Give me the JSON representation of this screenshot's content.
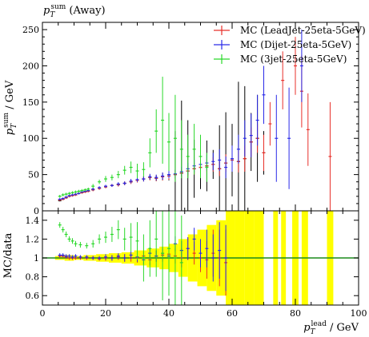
{
  "chart_data": {
    "type": "scatter",
    "title": "p_T^sum (Away)",
    "title_main": "p",
    "title_sub": "T",
    "title_sup": "sum",
    "title_rest": " (Away)",
    "xlabel_main": "p",
    "xlabel_sub": "T",
    "xlabel_sup": "lead",
    "xlabel_rest": " / GeV",
    "ylabel_main": "p",
    "ylabel_sub": "T",
    "ylabel_sup": "sum",
    "ylabel_rest": " / GeV",
    "ratio_ylabel": "MC/data",
    "xlim": [
      0,
      100
    ],
    "ylim": [
      0,
      260
    ],
    "ratio_ylim": [
      0.5,
      1.5
    ],
    "x_ticks": [
      0,
      20,
      40,
      60,
      80,
      100
    ],
    "y_ticks": [
      0,
      50,
      100,
      150,
      200,
      250
    ],
    "ratio_ticks": [
      0.6,
      0.8,
      1,
      1.2,
      1.4
    ],
    "legend_position": "top-right",
    "series": [
      {
        "name": "MC (LeadJet-25eta-5GeV)",
        "color": "#e8302a",
        "points": [
          [
            5.5,
            15,
            1.5
          ],
          [
            6.5,
            16,
            1.5
          ],
          [
            7.5,
            18,
            1.5
          ],
          [
            8.5,
            20,
            1.5
          ],
          [
            9.5,
            21,
            1.5
          ],
          [
            10.5,
            22,
            1.5
          ],
          [
            11.5,
            24,
            1.5
          ],
          [
            12.5,
            25,
            1.5
          ],
          [
            13.5,
            26,
            1.5
          ],
          [
            14.5,
            27,
            1.5
          ],
          [
            16,
            29,
            2
          ],
          [
            18,
            31,
            2
          ],
          [
            20,
            33,
            2
          ],
          [
            22,
            35,
            2
          ],
          [
            24,
            36,
            2.5
          ],
          [
            26,
            38,
            2.5
          ],
          [
            28,
            40,
            3
          ],
          [
            30,
            42,
            3
          ],
          [
            32,
            44,
            3.5
          ],
          [
            34,
            46,
            4
          ],
          [
            36,
            45,
            4
          ],
          [
            38,
            47,
            5
          ],
          [
            40,
            48,
            5
          ],
          [
            42,
            50,
            6
          ],
          [
            44,
            52,
            6
          ],
          [
            46,
            55,
            7
          ],
          [
            48,
            58,
            8
          ],
          [
            50,
            60,
            8
          ],
          [
            52,
            62,
            9
          ],
          [
            54,
            64,
            10
          ],
          [
            56,
            58,
            10
          ],
          [
            58,
            66,
            12
          ],
          [
            60,
            70,
            15
          ],
          [
            62,
            68,
            15
          ],
          [
            64,
            72,
            18
          ],
          [
            66,
            95,
            20
          ],
          [
            68,
            100,
            20
          ],
          [
            70,
            80,
            25
          ],
          [
            72,
            120,
            30
          ],
          [
            76,
            180,
            40
          ],
          [
            80,
            200,
            40
          ],
          [
            82,
            165,
            50
          ],
          [
            84,
            112,
            50
          ],
          [
            91,
            75,
            75
          ]
        ],
        "ratio": [
          [
            5.5,
            1.02,
            0.02
          ],
          [
            6.5,
            1.02,
            0.02
          ],
          [
            7.5,
            1.01,
            0.02
          ],
          [
            8.5,
            1.0,
            0.02
          ],
          [
            9.5,
            1.0,
            0.02
          ],
          [
            10.5,
            1.0,
            0.02
          ],
          [
            12,
            1.0,
            0.02
          ],
          [
            14,
            1.0,
            0.02
          ],
          [
            16,
            1.0,
            0.02
          ],
          [
            18,
            0.99,
            0.02
          ],
          [
            20,
            1.0,
            0.03
          ],
          [
            22,
            1.0,
            0.03
          ],
          [
            24,
            1.01,
            0.03
          ],
          [
            26,
            1.0,
            0.04
          ],
          [
            28,
            1.0,
            0.04
          ],
          [
            30,
            1.0,
            0.05
          ],
          [
            32,
            1.02,
            0.05
          ],
          [
            34,
            0.98,
            0.06
          ],
          [
            36,
            1.02,
            0.06
          ],
          [
            38,
            1.03,
            0.07
          ],
          [
            40,
            1.04,
            0.08
          ],
          [
            42,
            1.02,
            0.08
          ],
          [
            44,
            1.0,
            0.1
          ],
          [
            46,
            1.1,
            0.12
          ],
          [
            48,
            1.05,
            0.12
          ],
          [
            50,
            1.0,
            0.15
          ],
          [
            52,
            0.98,
            0.2
          ],
          [
            54,
            1.05,
            0.25
          ],
          [
            56,
            1.0,
            0.3
          ],
          [
            58,
            0.95,
            0.35
          ]
        ]
      },
      {
        "name": "MC (Dijet-25eta-5GeV)",
        "color": "#2a2ae8",
        "points": [
          [
            5.5,
            16,
            1.5
          ],
          [
            6.5,
            17,
            1.5
          ],
          [
            7.5,
            19,
            1.5
          ],
          [
            8.5,
            21,
            1.5
          ],
          [
            9.5,
            22,
            1.5
          ],
          [
            10.5,
            23,
            1.5
          ],
          [
            11.5,
            24,
            1.5
          ],
          [
            12.5,
            26,
            1.5
          ],
          [
            13.5,
            27,
            1.5
          ],
          [
            14.5,
            28,
            1.5
          ],
          [
            16,
            30,
            2
          ],
          [
            18,
            32,
            2
          ],
          [
            20,
            34,
            2
          ],
          [
            22,
            35,
            2
          ],
          [
            24,
            37,
            2.5
          ],
          [
            26,
            38,
            2.5
          ],
          [
            28,
            41,
            3
          ],
          [
            30,
            43,
            3
          ],
          [
            32,
            44,
            3.5
          ],
          [
            34,
            47,
            4
          ],
          [
            36,
            46,
            4
          ],
          [
            38,
            48,
            5
          ],
          [
            40,
            50,
            5
          ],
          [
            42,
            51,
            6
          ],
          [
            44,
            54,
            7
          ],
          [
            46,
            58,
            8
          ],
          [
            48,
            62,
            9
          ],
          [
            50,
            64,
            10
          ],
          [
            52,
            66,
            11
          ],
          [
            54,
            68,
            12
          ],
          [
            56,
            70,
            15
          ],
          [
            58,
            60,
            15
          ],
          [
            60,
            72,
            18
          ],
          [
            62,
            85,
            20
          ],
          [
            64,
            100,
            25
          ],
          [
            66,
            104,
            30
          ],
          [
            68,
            125,
            35
          ],
          [
            70,
            160,
            40
          ],
          [
            74,
            100,
            60
          ],
          [
            78,
            100,
            70
          ],
          [
            82,
            200,
            50
          ]
        ],
        "ratio": [
          [
            5.5,
            1.03,
            0.02
          ],
          [
            6.5,
            1.03,
            0.02
          ],
          [
            7.5,
            1.02,
            0.02
          ],
          [
            8.5,
            1.02,
            0.02
          ],
          [
            9.5,
            1.01,
            0.02
          ],
          [
            10.5,
            1.02,
            0.02
          ],
          [
            12,
            1.01,
            0.02
          ],
          [
            14,
            1.01,
            0.02
          ],
          [
            16,
            1.0,
            0.02
          ],
          [
            18,
            1.0,
            0.02
          ],
          [
            20,
            1.01,
            0.03
          ],
          [
            22,
            1.0,
            0.03
          ],
          [
            24,
            1.02,
            0.03
          ],
          [
            26,
            1.0,
            0.04
          ],
          [
            28,
            1.03,
            0.04
          ],
          [
            30,
            1.01,
            0.05
          ],
          [
            32,
            0.98,
            0.05
          ],
          [
            34,
            1.05,
            0.06
          ],
          [
            36,
            1.02,
            0.06
          ],
          [
            38,
            1.05,
            0.07
          ],
          [
            40,
            1.02,
            0.08
          ],
          [
            42,
            1.15,
            0.08
          ],
          [
            44,
            1.08,
            0.1
          ],
          [
            46,
            1.1,
            0.12
          ],
          [
            48,
            1.2,
            0.12
          ],
          [
            50,
            1.05,
            0.15
          ],
          [
            52,
            1.1,
            0.2
          ],
          [
            54,
            1.0,
            0.25
          ],
          [
            56,
            1.08,
            0.3
          ],
          [
            58,
            1.0,
            0.35
          ]
        ]
      },
      {
        "name": "MC (3jet-25eta-5GeV)",
        "color": "#2ad82a",
        "points": [
          [
            5.5,
            20,
            2
          ],
          [
            6.5,
            22,
            2
          ],
          [
            7.5,
            23,
            2
          ],
          [
            8.5,
            24,
            2
          ],
          [
            9.5,
            25,
            2
          ],
          [
            10.5,
            26,
            2
          ],
          [
            11.5,
            27,
            2
          ],
          [
            12.5,
            28,
            2
          ],
          [
            13.5,
            29,
            2
          ],
          [
            14.5,
            30,
            2
          ],
          [
            16,
            34,
            3
          ],
          [
            18,
            40,
            3
          ],
          [
            20,
            44,
            4
          ],
          [
            22,
            46,
            4
          ],
          [
            24,
            50,
            5
          ],
          [
            26,
            56,
            6
          ],
          [
            28,
            60,
            8
          ],
          [
            30,
            55,
            10
          ],
          [
            32,
            57,
            10
          ],
          [
            34,
            80,
            20
          ],
          [
            36,
            110,
            30
          ],
          [
            38,
            125,
            60
          ],
          [
            40,
            95,
            40
          ],
          [
            42,
            100,
            60
          ],
          [
            44,
            85,
            40
          ],
          [
            46,
            75,
            30
          ],
          [
            48,
            85,
            35
          ],
          [
            50,
            75,
            30
          ],
          [
            52,
            60,
            20
          ]
        ],
        "ratio": [
          [
            5.5,
            1.35,
            0.03
          ],
          [
            6.5,
            1.3,
            0.03
          ],
          [
            7.5,
            1.25,
            0.03
          ],
          [
            8.5,
            1.2,
            0.03
          ],
          [
            9.5,
            1.18,
            0.03
          ],
          [
            10.5,
            1.15,
            0.03
          ],
          [
            12,
            1.14,
            0.03
          ],
          [
            14,
            1.13,
            0.03
          ],
          [
            16,
            1.15,
            0.04
          ],
          [
            18,
            1.2,
            0.05
          ],
          [
            20,
            1.22,
            0.06
          ],
          [
            22,
            1.25,
            0.08
          ],
          [
            24,
            1.3,
            0.1
          ],
          [
            26,
            1.2,
            0.12
          ],
          [
            28,
            1.22,
            0.15
          ],
          [
            30,
            1.18,
            0.2
          ],
          [
            32,
            1.0,
            0.25
          ],
          [
            34,
            1.1,
            0.3
          ],
          [
            36,
            1.2,
            0.4
          ],
          [
            38,
            1.05,
            0.5
          ],
          [
            40,
            1.1,
            0.5
          ],
          [
            42,
            1.0,
            0.5
          ],
          [
            44,
            0.95,
            0.5
          ]
        ]
      }
    ],
    "data": {
      "color": "#000000",
      "points": [
        [
          5.5,
          14,
          1
        ],
        [
          6.5,
          16,
          1
        ],
        [
          7.5,
          18,
          1
        ],
        [
          8.5,
          20,
          1
        ],
        [
          9.5,
          21,
          1
        ],
        [
          10.5,
          22,
          1
        ],
        [
          11.5,
          24,
          1
        ],
        [
          12.5,
          25,
          1
        ],
        [
          13.5,
          26,
          1
        ],
        [
          14.5,
          27,
          1
        ],
        [
          16,
          29,
          1.5
        ],
        [
          18,
          31,
          1.5
        ],
        [
          20,
          33,
          1.5
        ],
        [
          22,
          35,
          1.5
        ],
        [
          24,
          36,
          2
        ],
        [
          26,
          38,
          2
        ],
        [
          28,
          40,
          2
        ],
        [
          30,
          42,
          2.5
        ],
        [
          32,
          44,
          3
        ],
        [
          34,
          46,
          3
        ],
        [
          36,
          45,
          4
        ],
        [
          38,
          47,
          5
        ],
        [
          40,
          48,
          6
        ],
        [
          42,
          50,
          60
        ],
        [
          44,
          52,
          100
        ],
        [
          46,
          55,
          70
        ],
        [
          48,
          58,
          40
        ],
        [
          50,
          60,
          30
        ],
        [
          52,
          62,
          35
        ],
        [
          54,
          64,
          20
        ],
        [
          56,
          58,
          60
        ],
        [
          58,
          66,
          70
        ],
        [
          60,
          70,
          50
        ],
        [
          62,
          68,
          110
        ],
        [
          64,
          72,
          100
        ],
        [
          66,
          95,
          40
        ],
        [
          68,
          100,
          60
        ],
        [
          70,
          80,
          30
        ]
      ]
    },
    "ratio_band": [
      [
        4,
        7,
        0.02
      ],
      [
        7,
        10,
        0.03
      ],
      [
        10,
        13,
        0.02
      ],
      [
        13,
        17,
        0.03
      ],
      [
        17,
        21,
        0.04
      ],
      [
        21,
        25,
        0.05
      ],
      [
        25,
        29,
        0.06
      ],
      [
        29,
        33,
        0.08
      ],
      [
        33,
        37,
        0.1
      ],
      [
        37,
        40,
        0.12
      ],
      [
        40,
        43,
        0.15
      ],
      [
        43,
        46,
        0.2
      ],
      [
        46,
        49,
        0.25
      ],
      [
        49,
        52,
        0.3
      ],
      [
        52,
        55,
        0.35
      ],
      [
        55,
        58,
        0.4
      ],
      [
        58,
        61,
        0.5
      ],
      [
        61,
        64,
        0.5
      ],
      [
        64,
        67,
        0.5
      ],
      [
        67,
        70,
        0.5
      ],
      [
        73,
        74.5,
        0.5
      ],
      [
        75.5,
        77,
        0.5
      ],
      [
        79,
        81,
        0.5
      ],
      [
        82,
        84,
        0.5
      ],
      [
        90,
        92,
        0.5
      ]
    ]
  }
}
